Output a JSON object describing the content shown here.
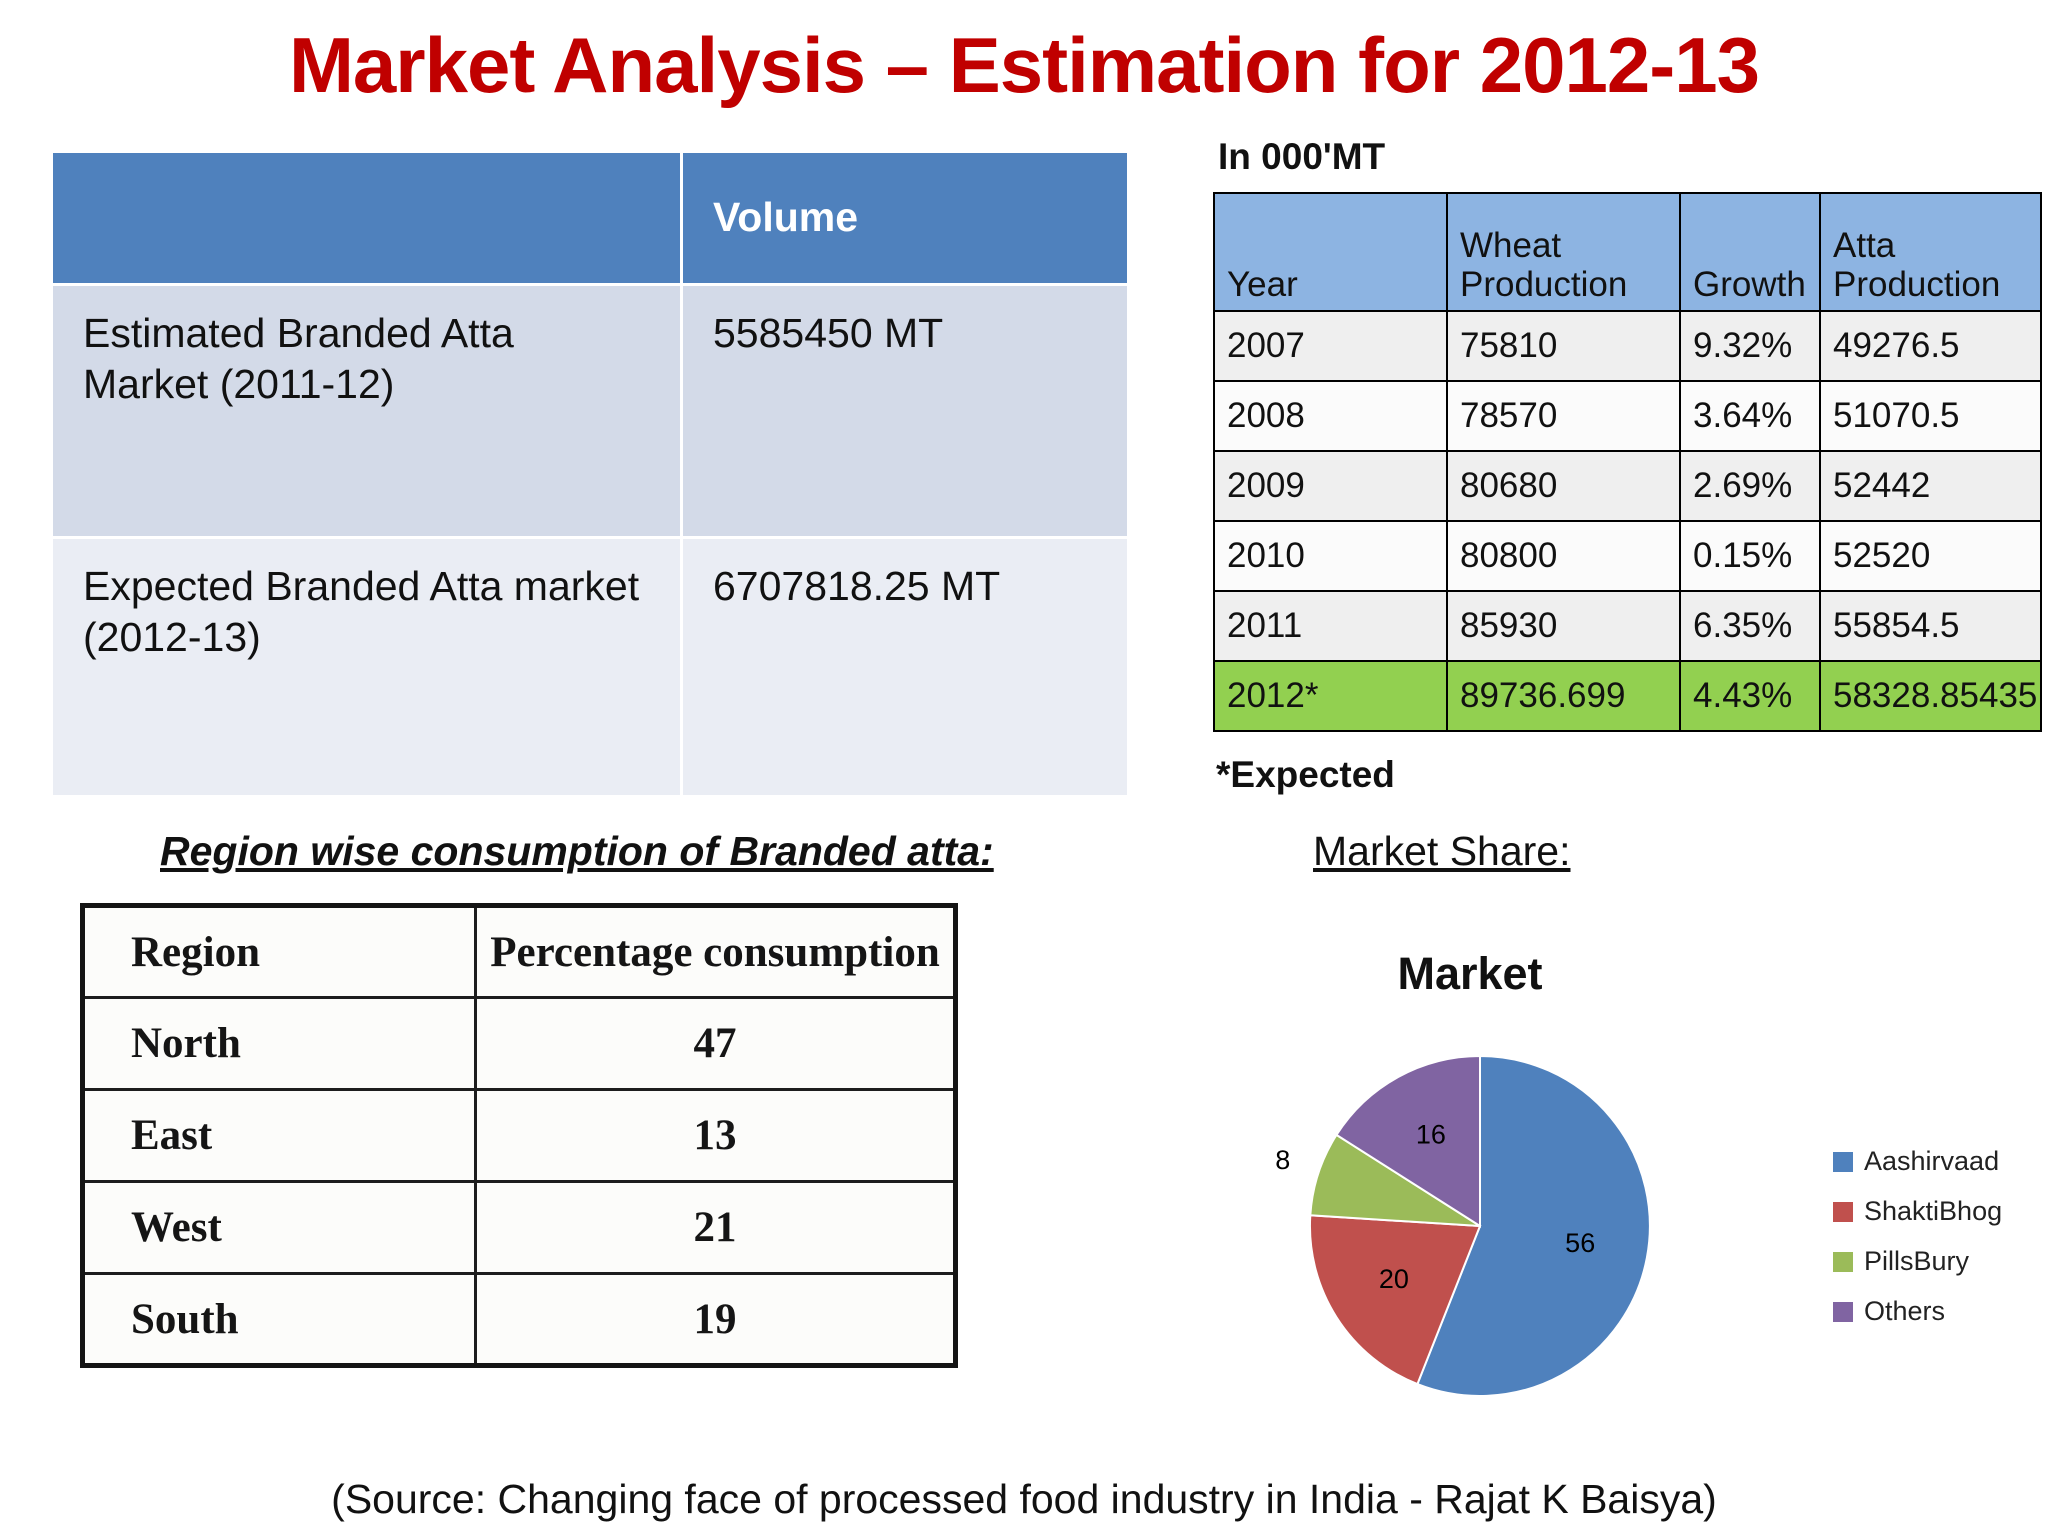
{
  "title": "Market Analysis – Estimation for 2012-13",
  "volume_table": {
    "header": {
      "volume_label": "Volume"
    },
    "rows": [
      {
        "label": "Estimated Branded Atta Market (2011-12)",
        "value": "5585450 MT"
      },
      {
        "label": "Expected Branded Atta market (2012-13)",
        "value": "6707818.25 MT"
      }
    ]
  },
  "production_table": {
    "unit_label": "In 000'MT",
    "headers": [
      "Year",
      "Wheat Production",
      "Growth",
      "Atta Production"
    ],
    "rows": [
      [
        "2007",
        "75810",
        "9.32%",
        "49276.5"
      ],
      [
        "2008",
        "78570",
        "3.64%",
        "51070.5"
      ],
      [
        "2009",
        "80680",
        "2.69%",
        "52442"
      ],
      [
        "2010",
        "80800",
        "0.15%",
        "52520"
      ],
      [
        "2011",
        "85930",
        "6.35%",
        "55854.5"
      ],
      [
        "2012*",
        "89736.699",
        "4.43%",
        "58328.85435"
      ]
    ],
    "footnote": "*Expected",
    "header_color": "#8DB4E2",
    "highlight_row_color": "#92D050"
  },
  "region_section": {
    "heading": "Region wise consumption of Branded atta:",
    "headers": [
      "Region",
      "Percentage consumption"
    ],
    "rows": [
      [
        "North",
        "47"
      ],
      [
        "East",
        "13"
      ],
      [
        "West",
        "21"
      ],
      [
        "South",
        "19"
      ]
    ]
  },
  "market_share": {
    "heading": "Market Share:"
  },
  "chart_data": {
    "type": "pie",
    "title": "Market",
    "labels": [
      "Aashirvaad",
      "ShaktiBhog",
      "PillsBury",
      "Others"
    ],
    "values": [
      56,
      20,
      8,
      16
    ],
    "colors": [
      "#4F81BD",
      "#C0504D",
      "#9BBB59",
      "#8064A2"
    ],
    "legend_position": "right",
    "start_angle_deg": -90,
    "direction": "clockwise"
  },
  "source": "(Source: Changing face of processed food industry in India - Rajat K Baisya)",
  "accent_colors": {
    "title_red": "#C00000",
    "volume_header_blue": "#4F81BD",
    "volume_row1_blue": "#D3DAE8",
    "volume_row2_blue": "#EAEDF4"
  }
}
